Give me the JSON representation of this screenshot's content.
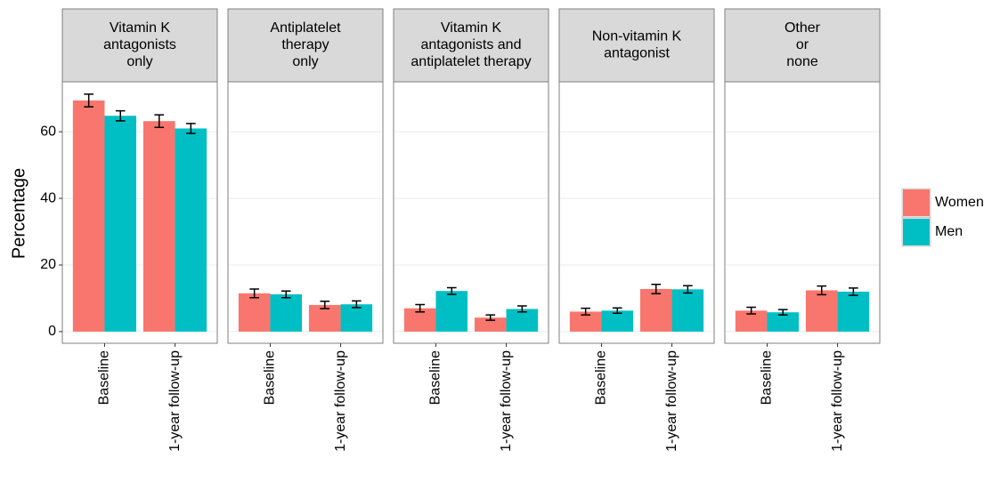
{
  "chart_data": {
    "type": "bar",
    "y_label": "Percentage",
    "categories": [
      "Baseline",
      "1-year follow-up"
    ],
    "series": [
      {
        "name": "Women",
        "color": "#F8766D"
      },
      {
        "name": "Men",
        "color": "#00BFC4"
      }
    ],
    "ylim": [
      -3.5,
      75
    ],
    "yticks": [
      0,
      20,
      40,
      60
    ],
    "grid": true,
    "legend": "right",
    "facets": [
      {
        "title": [
          "Vitamin K",
          "antagonists",
          "only"
        ],
        "series": [
          {
            "values": [
              69.4,
              63.2
            ],
            "errors": [
              1.9,
              1.9
            ]
          },
          {
            "values": [
              64.8,
              61.0
            ],
            "errors": [
              1.5,
              1.5
            ]
          }
        ]
      },
      {
        "title": [
          "Antiplatelet",
          "therapy",
          "only"
        ],
        "series": [
          {
            "values": [
              11.5,
              8.0
            ],
            "errors": [
              1.3,
              1.1
            ]
          },
          {
            "values": [
              11.2,
              8.2
            ],
            "errors": [
              1.0,
              1.0
            ]
          }
        ]
      },
      {
        "title": [
          "Vitamin K",
          "antagonists and",
          "antiplatelet therapy"
        ],
        "series": [
          {
            "values": [
              7.0,
              4.2
            ],
            "errors": [
              1.1,
              0.8
            ]
          },
          {
            "values": [
              12.2,
              6.8
            ],
            "errors": [
              1.0,
              0.9
            ]
          }
        ]
      },
      {
        "title": [
          "Non-vitamin K",
          "antagonist"
        ],
        "series": [
          {
            "values": [
              6.0,
              12.8
            ],
            "errors": [
              1.0,
              1.4
            ]
          },
          {
            "values": [
              6.3,
              12.7
            ],
            "errors": [
              0.8,
              1.1
            ]
          }
        ]
      },
      {
        "title": [
          "Other",
          "or",
          "none"
        ],
        "series": [
          {
            "values": [
              6.3,
              12.4
            ],
            "errors": [
              1.0,
              1.3
            ]
          },
          {
            "values": [
              5.8,
              12.0
            ],
            "errors": [
              0.8,
              1.1
            ]
          }
        ]
      }
    ]
  }
}
